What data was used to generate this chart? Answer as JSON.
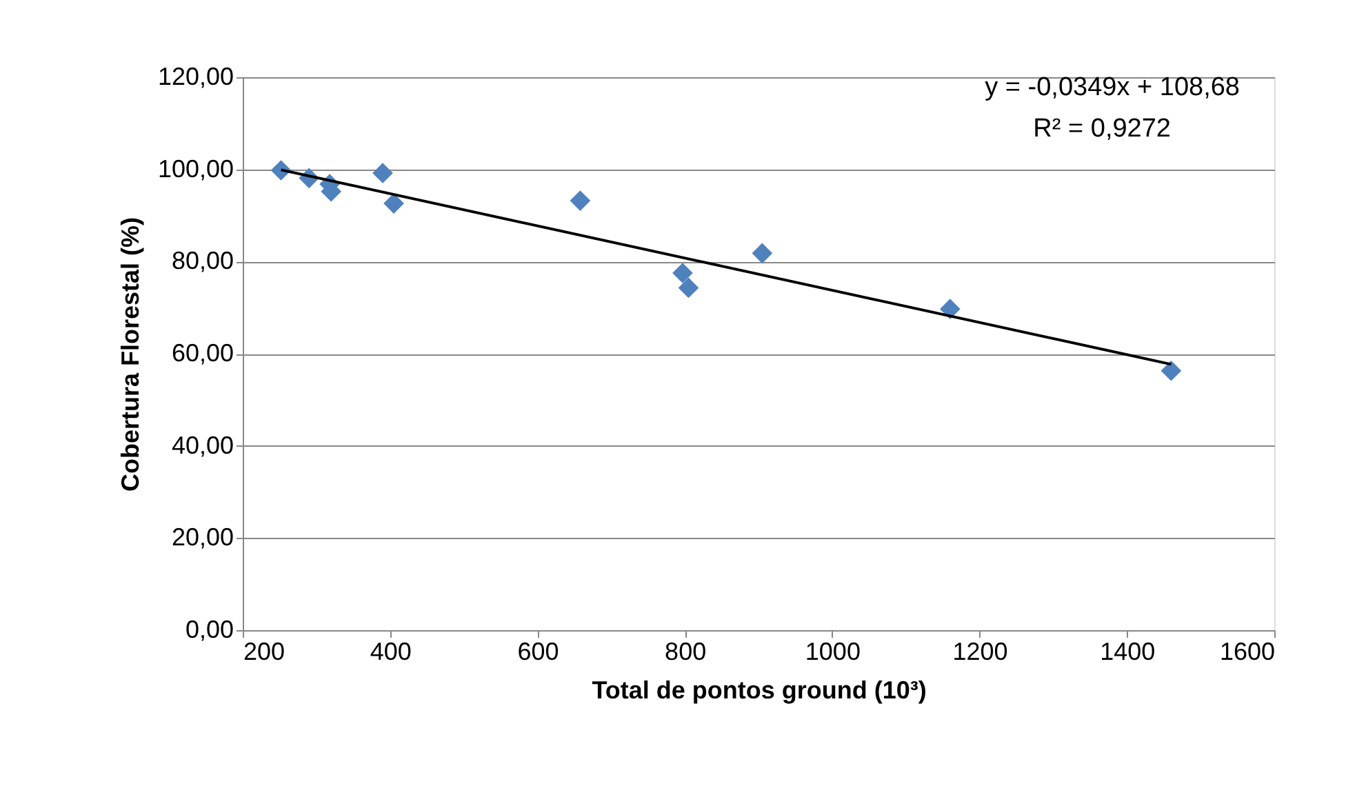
{
  "chart_data": {
    "type": "scatter",
    "xlabel": "Total de pontos ground (10³)",
    "ylabel": "Cobertura Florestal (%)",
    "grid": "y",
    "xlim": [
      200,
      1600
    ],
    "xticks": [
      200,
      400,
      600,
      800,
      1000,
      1200,
      1400,
      1600
    ],
    "ylim": [
      0,
      120
    ],
    "yticks": [
      {
        "value": 0,
        "label": "0,00"
      },
      {
        "value": 20,
        "label": "20,00"
      },
      {
        "value": 40,
        "label": "40,00"
      },
      {
        "value": 60,
        "label": "60,00"
      },
      {
        "value": 80,
        "label": "80,00"
      },
      {
        "value": 100,
        "label": "100,00"
      },
      {
        "value": 120,
        "label": "120,00"
      }
    ],
    "series": [
      {
        "marker": "diamond",
        "color": "#4f81bd",
        "x": [
          252,
          290,
          318,
          320,
          390,
          405,
          658,
          797,
          805,
          905,
          1160,
          1460
        ],
        "values": [
          99.8,
          98.1,
          96.8,
          95.2,
          99.2,
          92.6,
          93.2,
          77.5,
          74.3,
          81.8,
          69.7,
          56.3
        ]
      },
      {
        "type": "line",
        "color": "#000000",
        "x": [
          252,
          1460
        ],
        "values": [
          99.9,
          57.7
        ]
      }
    ],
    "annotations": [
      "y = -0,0349x + 108,68",
      "R² = 0,9272"
    ]
  }
}
